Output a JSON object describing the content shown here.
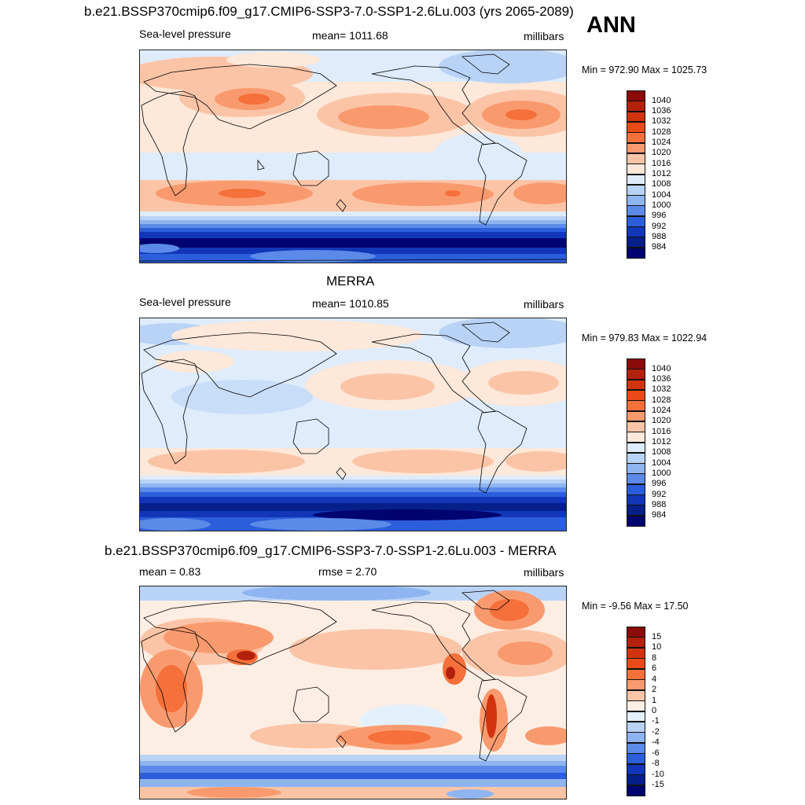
{
  "figure": {
    "title": "b.e21.BSSP370cmip6.f09_g17.CMIP6-SSP3-7.0-SSP1-2.6Lu.003 (yrs 2065-2089)",
    "season": "ANN"
  },
  "panels": [
    {
      "title": "",
      "variable": "Sea-level pressure",
      "stat_text": "mean= 1011.68",
      "units": "millibars",
      "minmax": "Min = 972.90 Max = 1025.73"
    },
    {
      "title": "MERRA",
      "variable": "Sea-level pressure",
      "stat_text": "mean= 1010.85",
      "units": "millibars",
      "minmax": "Min = 979.83 Max = 1022.94"
    },
    {
      "title": "b.e21.BSSP370cmip6.f09_g17.CMIP6-SSP3-7.0-SSP1-2.6Lu.003 - MERRA",
      "variable": "mean =   0.83",
      "stat_text": "rmse =   2.70",
      "units": "millibars",
      "minmax": "Min =  -9.56 Max =  17.50"
    }
  ],
  "colorbars": {
    "absolute": {
      "labels": [
        "1040",
        "1036",
        "1032",
        "1028",
        "1024",
        "1020",
        "1016",
        "1012",
        "1008",
        "1004",
        "1000",
        "996",
        "992",
        "988",
        "984"
      ],
      "colors": [
        "#8b0a0a",
        "#b3200c",
        "#d2330f",
        "#ea4a18",
        "#f5703a",
        "#f99a6e",
        "#fcc4a6",
        "#fde8da",
        "#dfecfb",
        "#b9d3f6",
        "#8fb5f0",
        "#5b8ae8",
        "#2c5edb",
        "#1236b8",
        "#071f8a",
        "#000470"
      ]
    },
    "difference": {
      "labels": [
        "15",
        "10",
        "8",
        "6",
        "4",
        "2",
        "1",
        "0",
        "-1",
        "-2",
        "-4",
        "-6",
        "-8",
        "-10",
        "-15"
      ],
      "colors": [
        "#8b0a0a",
        "#b3200c",
        "#d2330f",
        "#ea4a18",
        "#f5703a",
        "#f99a6e",
        "#fcc4a6",
        "#fdeee4",
        "#e4f0fc",
        "#b9d3f6",
        "#8fb5f0",
        "#5b8ae8",
        "#2c5edb",
        "#1236b8",
        "#071f8a",
        "#000470"
      ]
    }
  },
  "chart_data": {
    "type": "heatmap",
    "projection": "cylindrical equidistant, centered on 180°",
    "fields": [
      {
        "name": "model",
        "mean": 1011.68,
        "min": 972.9,
        "max": 1025.73,
        "units": "millibars"
      },
      {
        "name": "MERRA",
        "mean": 1010.85,
        "min": 979.83,
        "max": 1022.94,
        "units": "millibars"
      },
      {
        "name": "model - MERRA",
        "mean": 0.83,
        "rmse": 2.7,
        "min": -9.56,
        "max": 17.5,
        "units": "millibars"
      }
    ]
  }
}
